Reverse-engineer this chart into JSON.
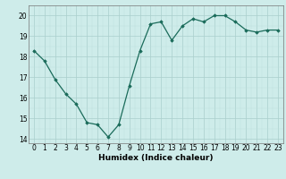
{
  "x": [
    0,
    1,
    2,
    3,
    4,
    5,
    6,
    7,
    8,
    9,
    10,
    11,
    12,
    13,
    14,
    15,
    16,
    17,
    18,
    19,
    20,
    21,
    22,
    23
  ],
  "y": [
    18.3,
    17.8,
    16.9,
    16.2,
    15.7,
    14.8,
    14.7,
    14.1,
    14.7,
    16.6,
    18.3,
    19.6,
    19.7,
    18.8,
    19.5,
    19.85,
    19.7,
    20.0,
    20.0,
    19.7,
    19.3,
    19.2,
    19.3,
    19.3
  ],
  "line_color": "#1a6b5a",
  "marker": "D",
  "marker_size": 1.8,
  "bg_color": "#ceecea",
  "grid_color_major": "#aacfcc",
  "grid_color_minor": "#bddedd",
  "xlabel": "Humidex (Indice chaleur)",
  "ylim": [
    13.8,
    20.5
  ],
  "xlim": [
    -0.5,
    23.5
  ],
  "yticks": [
    14,
    15,
    16,
    17,
    18,
    19,
    20
  ],
  "xticks": [
    0,
    1,
    2,
    3,
    4,
    5,
    6,
    7,
    8,
    9,
    10,
    11,
    12,
    13,
    14,
    15,
    16,
    17,
    18,
    19,
    20,
    21,
    22,
    23
  ],
  "xlabel_fontsize": 6.5,
  "tick_fontsize": 5.5,
  "linewidth": 0.9
}
